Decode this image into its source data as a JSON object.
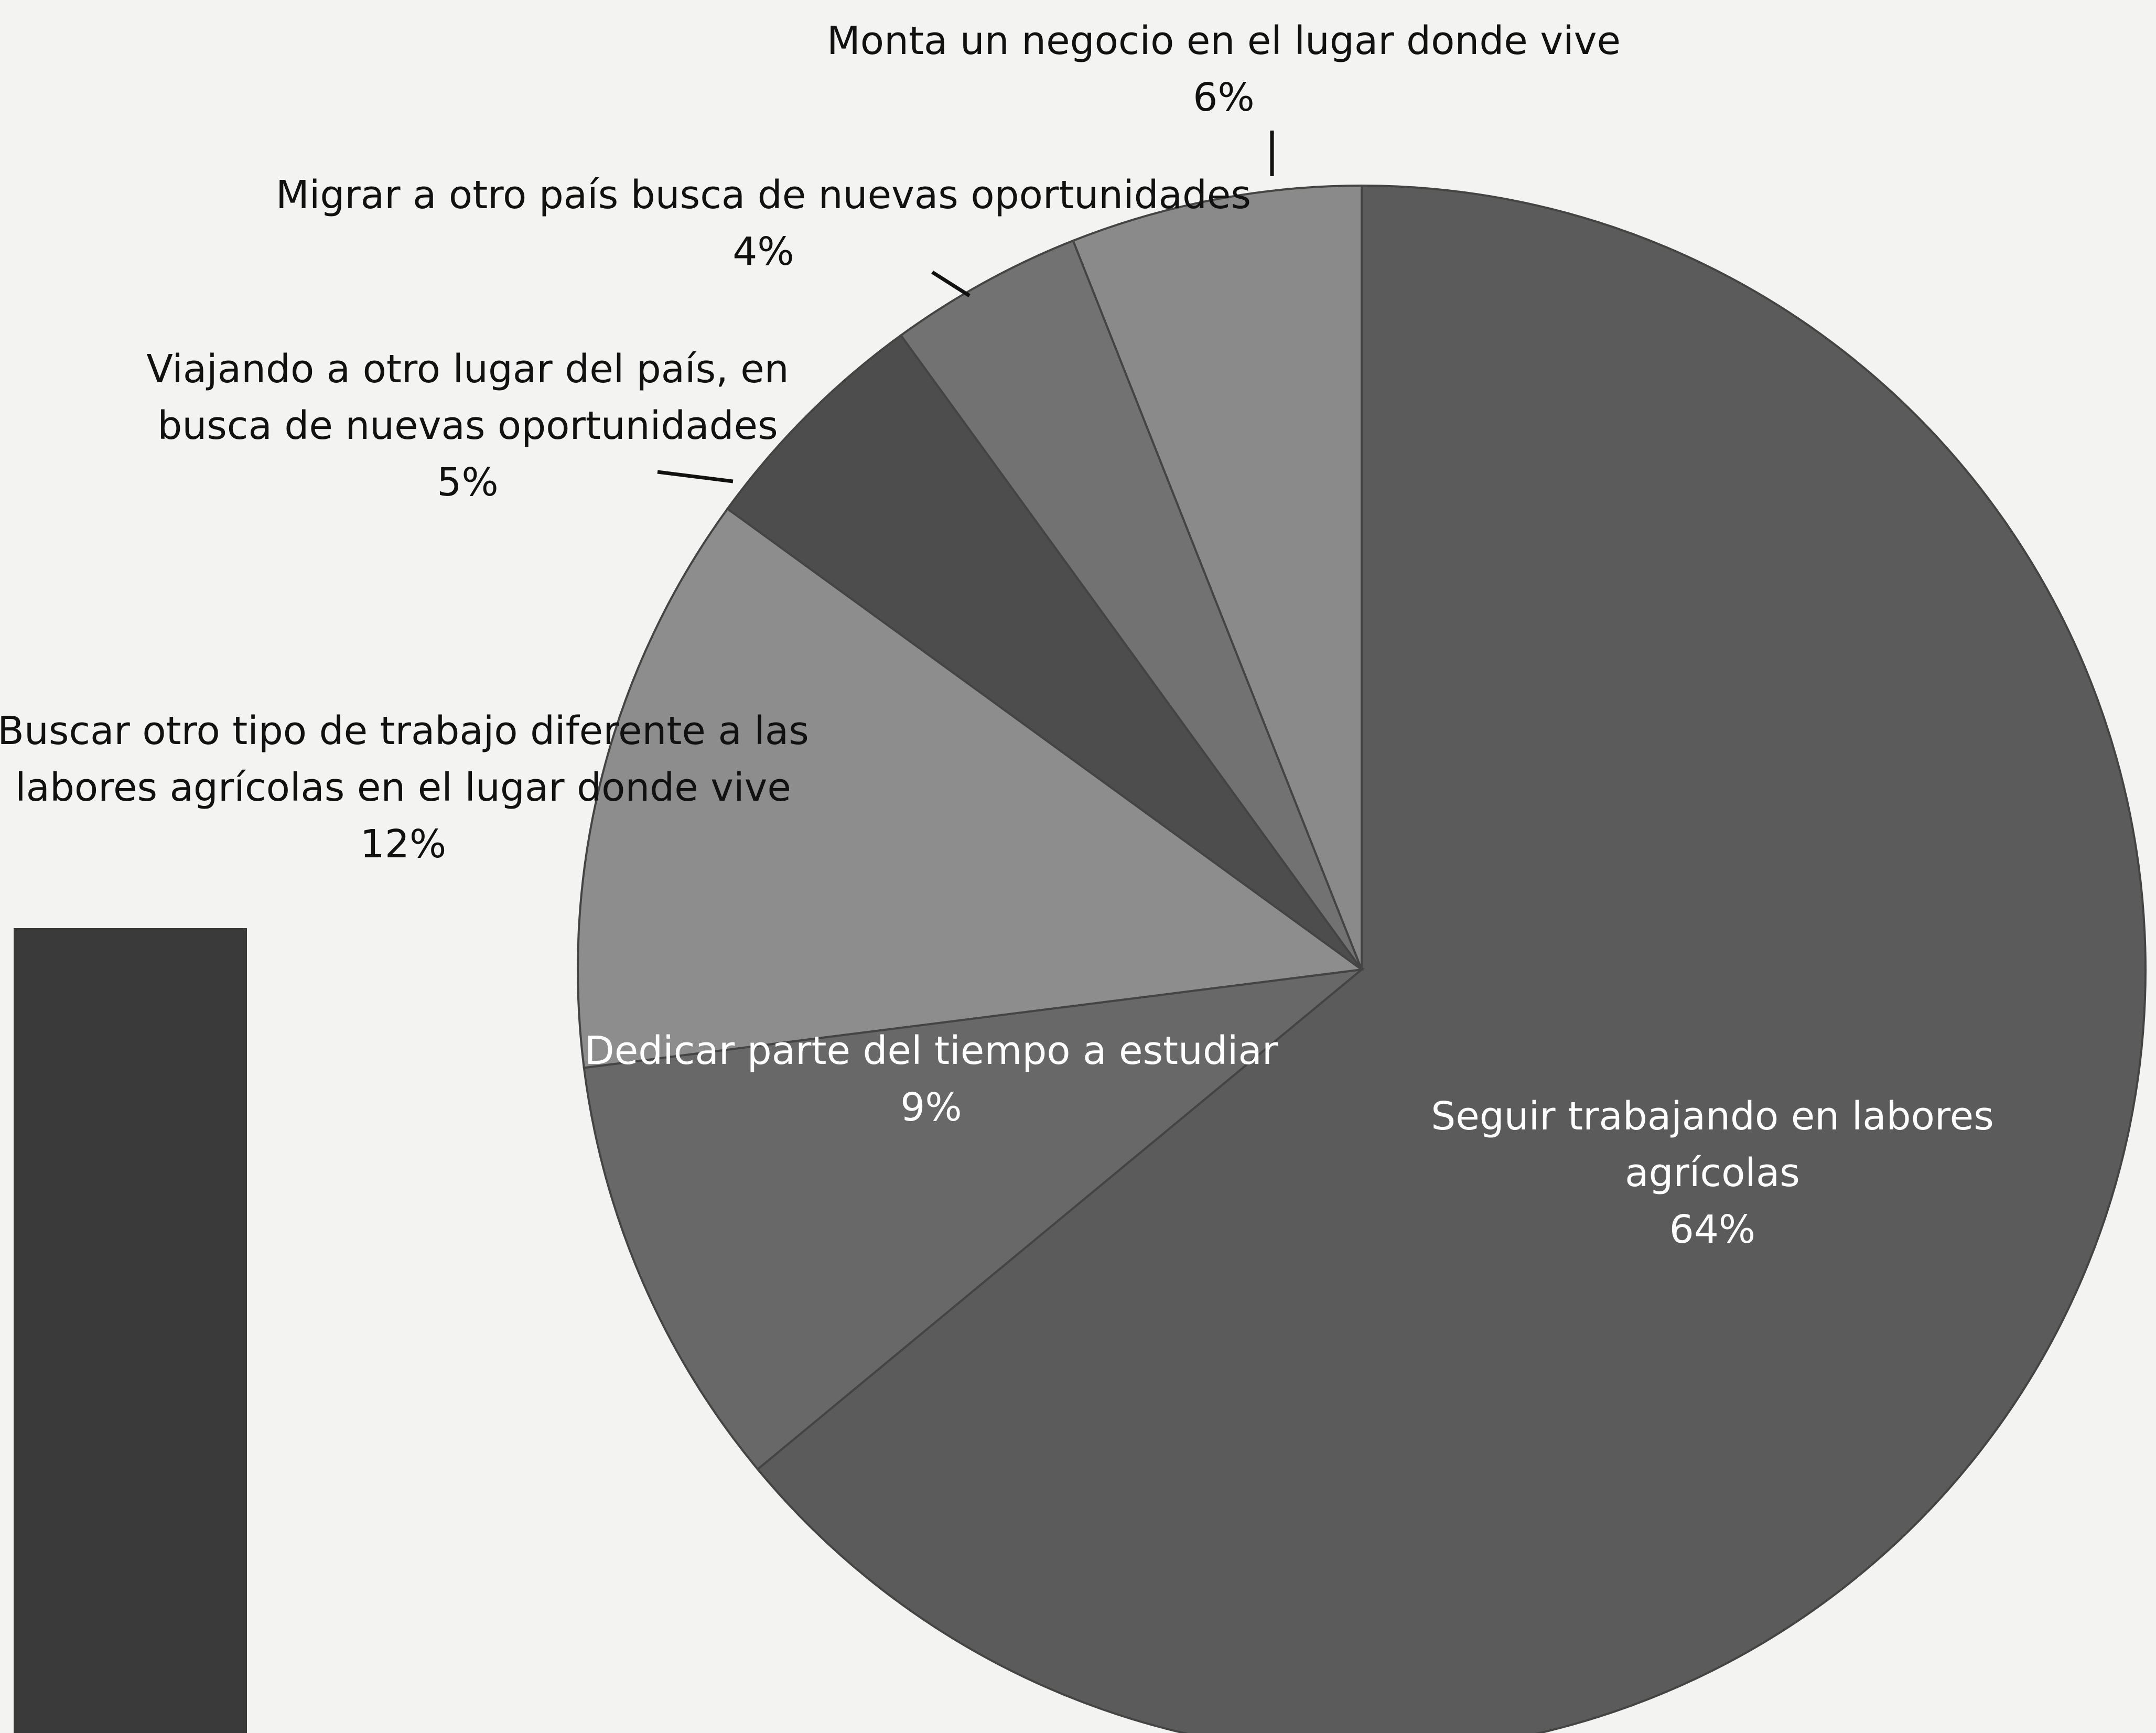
{
  "chart_data": {
    "type": "pie",
    "categories": [
      "Seguir trabajando en labores agrícolas",
      "Dedicar parte del tiempo a estudiar",
      "Buscar otro tipo de trabajo diferente a las labores agrícolas en el lugar donde vive",
      "Viajando a otro lugar del país, en busca de nuevas oportunidades",
      "Migrar a otro país busca de nuevas oportunidades",
      "Monta un negocio en el lugar donde vive"
    ],
    "values": [
      64,
      9,
      12,
      5,
      4,
      6
    ],
    "value_labels": [
      "64%",
      "9%",
      "12%",
      "5%",
      "4%",
      "6%"
    ],
    "colors": [
      "#5b5b5b",
      "#686868",
      "#8d8d8d",
      "#4d4d4d",
      "#727272",
      "#8a8a8a"
    ]
  }
}
